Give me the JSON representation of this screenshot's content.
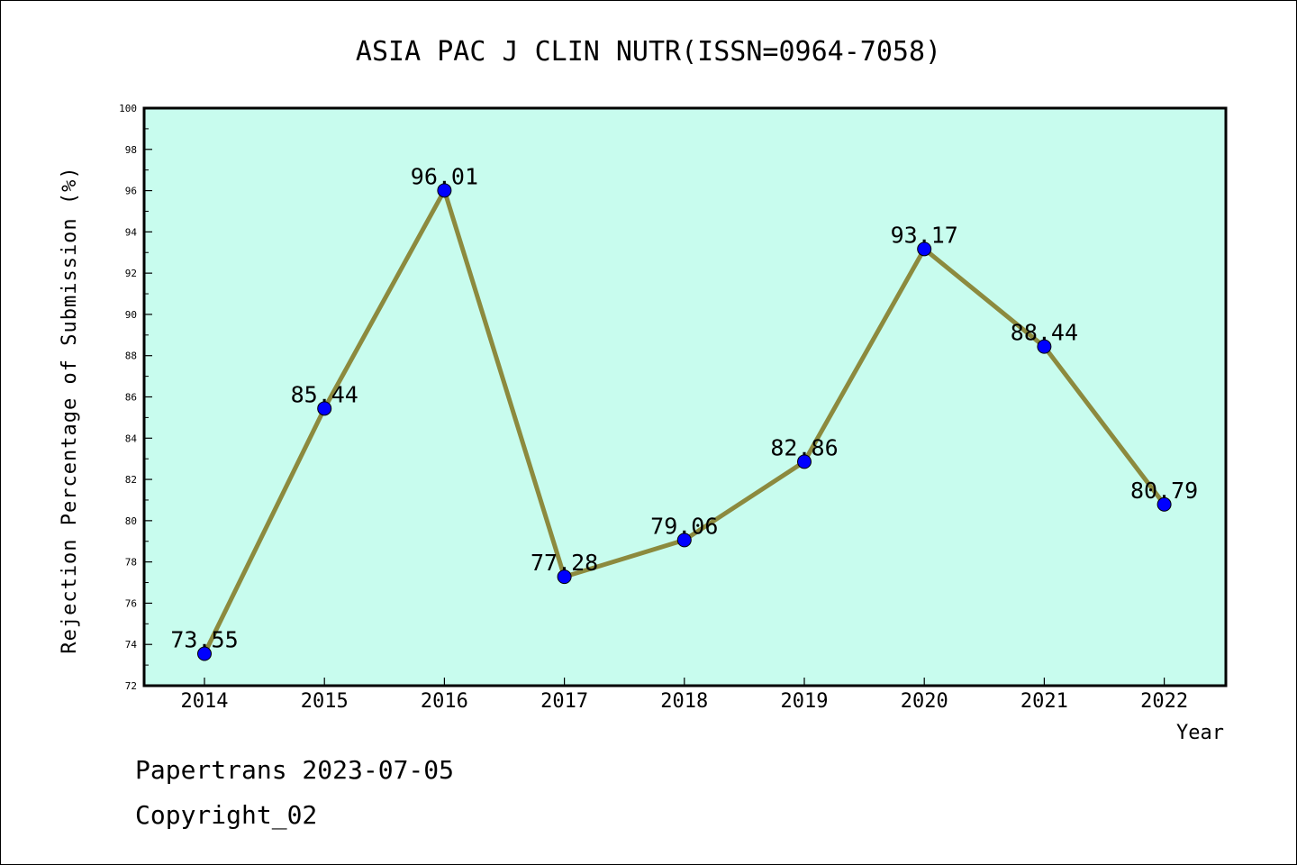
{
  "chart_data": {
    "type": "line",
    "title": "ASIA PAC J CLIN NUTR(ISSN=0964-7058)",
    "xlabel": "Year",
    "ylabel": "Rejection Percentage of Submission (%)",
    "categories": [
      "2014",
      "2015",
      "2016",
      "2017",
      "2018",
      "2019",
      "2020",
      "2021",
      "2022"
    ],
    "values": [
      73.55,
      85.44,
      96.01,
      77.28,
      79.06,
      82.86,
      93.17,
      88.44,
      80.79
    ],
    "data_labels": [
      "73.55",
      "85.44",
      "96.01",
      "77.28",
      "79.06",
      "82.86",
      "93.17",
      "88.44",
      "80.79"
    ],
    "ylim": [
      72,
      100
    ],
    "yticks": [
      72,
      74,
      76,
      78,
      80,
      82,
      84,
      86,
      88,
      90,
      92,
      94,
      96,
      98,
      100
    ],
    "grid": false,
    "legend": "none",
    "colors": {
      "plot_background": "#c8fcee",
      "line": "#8c8a3e",
      "marker": "#0000ff"
    }
  },
  "footer": {
    "line1": "Papertrans 2023-07-05",
    "line2": "Copyright_02"
  }
}
